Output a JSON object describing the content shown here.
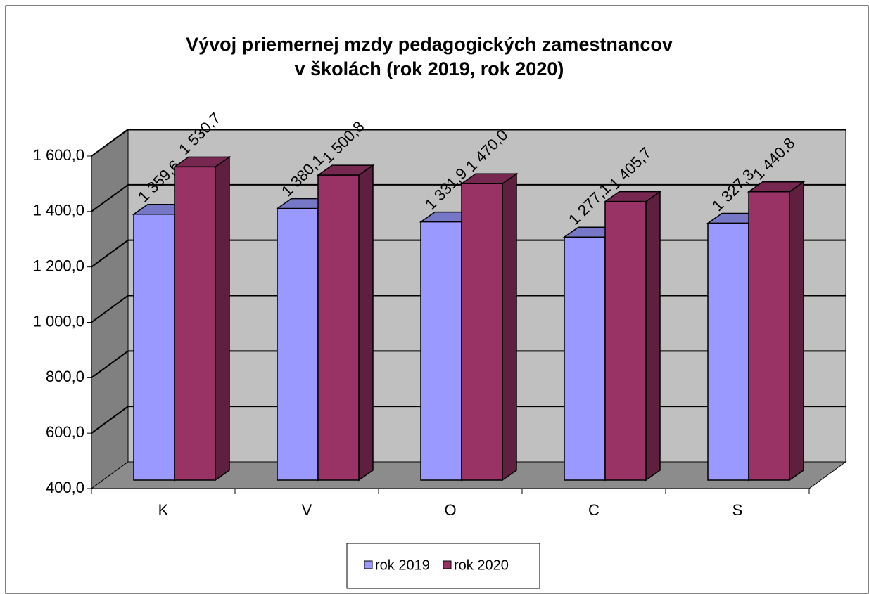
{
  "chart_data": {
    "type": "bar3d",
    "title": [
      "Vývoj priemernej mzdy pedagogických zamestnancov",
      "v školách (rok 2019, rok 2020)"
    ],
    "categories": [
      "K",
      "V",
      "O",
      "C",
      "S"
    ],
    "series": [
      {
        "name": "rok 2019",
        "color": "#9999ff",
        "values": [
          1359.6,
          1380.1,
          1331.9,
          1277.1,
          1327.3
        ],
        "value_labels": [
          "1 359,6",
          "1 380,1",
          "1 331,9",
          "1 277,1",
          "1 327,3"
        ]
      },
      {
        "name": "rok 2020",
        "color": "#993366",
        "values": [
          1530.7,
          1500.8,
          1470.0,
          1405.7,
          1440.8
        ],
        "value_labels": [
          "1 530,7",
          "1 500,8",
          "1 470,0",
          "1 405,7",
          "1 440,8"
        ]
      }
    ],
    "ylim": [
      400,
      1600
    ],
    "yticks": [
      {
        "value": 400,
        "label": "400,0"
      },
      {
        "value": 600,
        "label": "600,0"
      },
      {
        "value": 800,
        "label": "800,0"
      },
      {
        "value": 1000,
        "label": "1 000,0"
      },
      {
        "value": 1200,
        "label": "1 200,0"
      },
      {
        "value": 1400,
        "label": "1 400,0"
      },
      {
        "value": 1600,
        "label": "1 600,0"
      }
    ],
    "grid": true,
    "legend": "bottom"
  }
}
